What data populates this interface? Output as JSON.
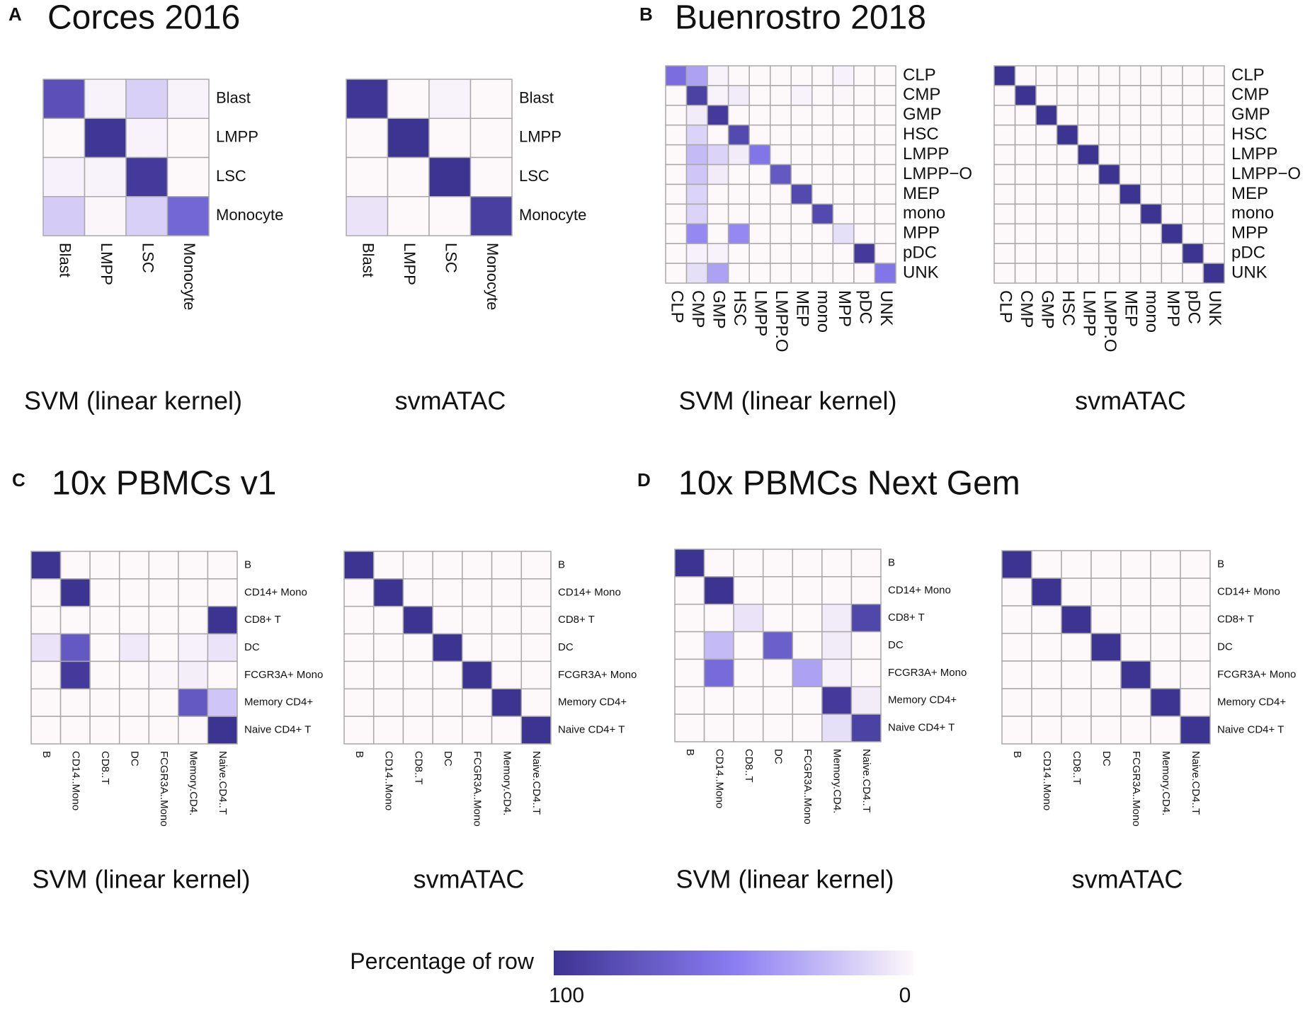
{
  "panels": [
    {
      "letter": "A",
      "title": "Corces 2016"
    },
    {
      "letter": "B",
      "title": "Buenrostro 2018"
    },
    {
      "letter": "C",
      "title": "10x PBMCs v1"
    },
    {
      "letter": "D",
      "title": "10x PBMCs Next Gem"
    }
  ],
  "chart_data": [
    {
      "type": "heatmap",
      "caption": "SVM (linear kernel)",
      "rows": [
        "Blast",
        "LMPP",
        "LSC",
        "Monocyte"
      ],
      "columns": [
        "Blast",
        "LMPP",
        "LSC",
        "Monocyte"
      ],
      "values": [
        [
          80,
          2,
          16,
          2
        ],
        [
          0,
          98,
          2,
          0
        ],
        [
          3,
          2,
          95,
          0
        ],
        [
          18,
          1,
          16,
          65
        ]
      ]
    },
    {
      "type": "heatmap",
      "caption": "svmATAC",
      "rows": [
        "Blast",
        "LMPP",
        "LSC",
        "Monocyte"
      ],
      "columns": [
        "Blast",
        "LMPP",
        "LSC",
        "Monocyte"
      ],
      "values": [
        [
          98,
          0,
          2,
          0
        ],
        [
          0,
          100,
          0,
          0
        ],
        [
          0,
          0,
          100,
          0
        ],
        [
          8,
          0,
          0,
          92
        ]
      ]
    },
    {
      "type": "heatmap",
      "caption": "SVM (linear kernel)",
      "rows": [
        "CLP",
        "CMP",
        "GMP",
        "HSC",
        "LMPP",
        "LMPP−O",
        "MEP",
        "mono",
        "MPP",
        "pDC",
        "UNK"
      ],
      "columns": [
        "CLP",
        "CMP",
        "GMP",
        "HSC",
        "LMPP",
        "LMPP.O",
        "MEP",
        "mono",
        "MPP",
        "pDC",
        "UNK"
      ],
      "values": [
        [
          60,
          35,
          2,
          0,
          0,
          0,
          0,
          0,
          3,
          0,
          0
        ],
        [
          0,
          90,
          2,
          5,
          0,
          0,
          2,
          0,
          1,
          0,
          0
        ],
        [
          0,
          5,
          95,
          0,
          0,
          0,
          0,
          0,
          0,
          0,
          0
        ],
        [
          0,
          15,
          0,
          85,
          0,
          0,
          0,
          0,
          0,
          0,
          0
        ],
        [
          0,
          25,
          15,
          5,
          55,
          0,
          0,
          0,
          0,
          0,
          0
        ],
        [
          0,
          20,
          5,
          0,
          0,
          75,
          0,
          0,
          0,
          0,
          0
        ],
        [
          0,
          15,
          0,
          0,
          0,
          0,
          85,
          0,
          0,
          0,
          0
        ],
        [
          0,
          15,
          0,
          0,
          0,
          0,
          0,
          85,
          0,
          0,
          0
        ],
        [
          0,
          45,
          0,
          45,
          0,
          0,
          0,
          0,
          10,
          0,
          0
        ],
        [
          0,
          3,
          2,
          0,
          0,
          0,
          0,
          0,
          0,
          95,
          0
        ],
        [
          0,
          10,
          35,
          0,
          0,
          0,
          0,
          0,
          0,
          0,
          55
        ]
      ]
    },
    {
      "type": "heatmap",
      "caption": "svmATAC",
      "rows": [
        "CLP",
        "CMP",
        "GMP",
        "HSC",
        "LMPP",
        "LMPP−O",
        "MEP",
        "mono",
        "MPP",
        "pDC",
        "UNK"
      ],
      "columns": [
        "CLP",
        "CMP",
        "GMP",
        "HSC",
        "LMPP",
        "LMPP.O",
        "MEP",
        "mono",
        "MPP",
        "pDC",
        "UNK"
      ],
      "values": [
        [
          100,
          0,
          0,
          0,
          0,
          0,
          0,
          0,
          0,
          0,
          0
        ],
        [
          0,
          100,
          0,
          0,
          0,
          0,
          0,
          0,
          0,
          0,
          0
        ],
        [
          0,
          0,
          100,
          0,
          0,
          0,
          0,
          0,
          0,
          0,
          0
        ],
        [
          0,
          0,
          0,
          100,
          0,
          0,
          0,
          0,
          0,
          0,
          0
        ],
        [
          0,
          0,
          0,
          0,
          100,
          0,
          0,
          0,
          0,
          0,
          0
        ],
        [
          0,
          0,
          0,
          0,
          0,
          100,
          0,
          0,
          0,
          0,
          0
        ],
        [
          0,
          0,
          0,
          0,
          0,
          0,
          100,
          0,
          0,
          0,
          0
        ],
        [
          0,
          0,
          0,
          0,
          0,
          0,
          0,
          100,
          0,
          0,
          0
        ],
        [
          0,
          0,
          0,
          0,
          0,
          0,
          0,
          0,
          100,
          0,
          0
        ],
        [
          0,
          0,
          0,
          0,
          0,
          0,
          0,
          0,
          0,
          100,
          0
        ],
        [
          0,
          0,
          0,
          0,
          0,
          0,
          0,
          0,
          0,
          0,
          100
        ]
      ]
    },
    {
      "type": "heatmap",
      "caption": "SVM (linear kernel)",
      "rows": [
        "B",
        "CD14+ Mono",
        "CD8+ T",
        "DC",
        "FCGR3A+ Mono",
        "Memory CD4+",
        "Naive CD4+ T"
      ],
      "columns": [
        "B",
        "CD14..Mono",
        "CD8..T",
        "DC",
        "FCGR3A..Mono",
        "Memory.CD4.",
        "Naive.CD4..T"
      ],
      "values": [
        [
          100,
          0,
          0,
          0,
          0,
          0,
          0
        ],
        [
          0,
          100,
          0,
          0,
          0,
          0,
          0
        ],
        [
          0,
          0,
          0,
          0,
          0,
          0,
          100
        ],
        [
          8,
          75,
          0,
          6,
          0,
          3,
          8
        ],
        [
          0,
          95,
          0,
          0,
          1,
          4,
          0
        ],
        [
          0,
          0,
          0,
          0,
          0,
          75,
          20
        ],
        [
          0,
          0,
          0,
          0,
          0,
          0,
          100
        ]
      ]
    },
    {
      "type": "heatmap",
      "caption": "svmATAC",
      "rows": [
        "B",
        "CD14+ Mono",
        "CD8+ T",
        "DC",
        "FCGR3A+ Mono",
        "Memory CD4+",
        "Naive CD4+ T"
      ],
      "columns": [
        "B",
        "CD14..Mono",
        "CD8..T",
        "DC",
        "FCGR3A..Mono",
        "Memory.CD4.",
        "Naive.CD4..T"
      ],
      "values": [
        [
          100,
          0,
          0,
          0,
          0,
          0,
          0
        ],
        [
          0,
          100,
          0,
          0,
          0,
          0,
          0
        ],
        [
          0,
          0,
          100,
          0,
          0,
          0,
          0
        ],
        [
          0,
          0,
          0,
          100,
          0,
          0,
          0
        ],
        [
          0,
          0,
          0,
          0,
          100,
          0,
          0
        ],
        [
          0,
          0,
          0,
          0,
          0,
          100,
          0
        ],
        [
          0,
          0,
          0,
          0,
          0,
          0,
          100
        ]
      ]
    },
    {
      "type": "heatmap",
      "caption": "SVM (linear kernel)",
      "rows": [
        "B",
        "CD14+ Mono",
        "CD8+ T",
        "DC",
        "FCGR3A+ Mono",
        "Memory CD4+",
        "Naive CD4+ T"
      ],
      "columns": [
        "B",
        "CD14..Mono",
        "CD8..T",
        "DC",
        "FCGR3A..Mono",
        "Memory.CD4.",
        "Naive.CD4..T"
      ],
      "values": [
        [
          100,
          0,
          0,
          0,
          0,
          0,
          0
        ],
        [
          0,
          100,
          0,
          0,
          0,
          0,
          0
        ],
        [
          0,
          0,
          8,
          0,
          0,
          5,
          87
        ],
        [
          0,
          25,
          0,
          70,
          0,
          5,
          0
        ],
        [
          0,
          62,
          0,
          0,
          35,
          3,
          0
        ],
        [
          0,
          0,
          0,
          0,
          0,
          95,
          5
        ],
        [
          0,
          0,
          0,
          0,
          0,
          10,
          90
        ]
      ]
    },
    {
      "type": "heatmap",
      "caption": "svmATAC",
      "rows": [
        "B",
        "CD14+ Mono",
        "CD8+ T",
        "DC",
        "FCGR3A+ Mono",
        "Memory CD4+",
        "Naive CD4+ T"
      ],
      "columns": [
        "B",
        "CD14..Mono",
        "CD8..T",
        "DC",
        "FCGR3A..Mono",
        "Memory.CD4.",
        "Naive.CD4..T"
      ],
      "values": [
        [
          100,
          0,
          0,
          0,
          0,
          0,
          0
        ],
        [
          0,
          100,
          0,
          0,
          0,
          0,
          0
        ],
        [
          0,
          0,
          100,
          0,
          0,
          0,
          0
        ],
        [
          0,
          0,
          0,
          100,
          0,
          0,
          0
        ],
        [
          0,
          0,
          0,
          0,
          100,
          0,
          0
        ],
        [
          0,
          0,
          0,
          0,
          0,
          100,
          0
        ],
        [
          0,
          0,
          0,
          0,
          0,
          0,
          100
        ]
      ]
    }
  ],
  "colorbar": {
    "title": "Percentage of row",
    "range": [
      100,
      0
    ],
    "ticks": [
      100,
      0
    ],
    "colors": [
      "#fdf8fa",
      "#8a7cf2",
      "#3d3391"
    ]
  }
}
